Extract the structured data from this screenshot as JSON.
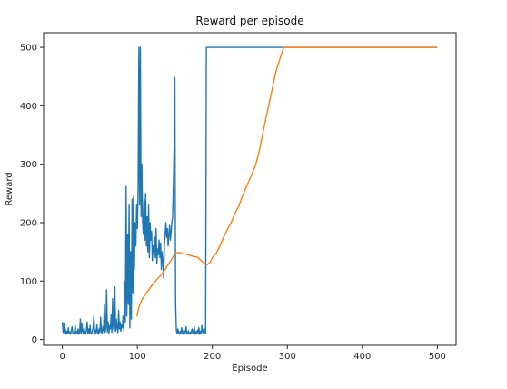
{
  "chart_data": {
    "type": "line",
    "title": "Reward per episode",
    "xlabel": "Episode",
    "ylabel": "Reward",
    "xlim": [
      -25,
      525
    ],
    "ylim": [
      -10,
      525
    ],
    "x_ticks": [
      0,
      100,
      200,
      300,
      400,
      500
    ],
    "y_ticks": [
      0,
      100,
      200,
      300,
      400,
      500
    ],
    "grid": false,
    "legend": "none",
    "series": [
      {
        "color": "#1f77b4",
        "points": [
          [
            0,
            30
          ],
          [
            1,
            12
          ],
          [
            2,
            28
          ],
          [
            3,
            10
          ],
          [
            4,
            18
          ],
          [
            5,
            9
          ],
          [
            6,
            14
          ],
          [
            7,
            11
          ],
          [
            8,
            20
          ],
          [
            9,
            10
          ],
          [
            10,
            13
          ],
          [
            11,
            9
          ],
          [
            12,
            16
          ],
          [
            13,
            22
          ],
          [
            14,
            10
          ],
          [
            15,
            12
          ],
          [
            16,
            9
          ],
          [
            17,
            25
          ],
          [
            18,
            11
          ],
          [
            19,
            14
          ],
          [
            20,
            10
          ],
          [
            21,
            18
          ],
          [
            22,
            9
          ],
          [
            23,
            12
          ],
          [
            24,
            35
          ],
          [
            25,
            10
          ],
          [
            26,
            28
          ],
          [
            27,
            14
          ],
          [
            28,
            10
          ],
          [
            29,
            20
          ],
          [
            30,
            12
          ],
          [
            31,
            9
          ],
          [
            32,
            15
          ],
          [
            33,
            30
          ],
          [
            34,
            11
          ],
          [
            35,
            18
          ],
          [
            36,
            10
          ],
          [
            37,
            24
          ],
          [
            38,
            12
          ],
          [
            39,
            9
          ],
          [
            40,
            14
          ],
          [
            41,
            20
          ],
          [
            42,
            40
          ],
          [
            43,
            11
          ],
          [
            44,
            16
          ],
          [
            45,
            10
          ],
          [
            46,
            26
          ],
          [
            47,
            13
          ],
          [
            48,
            9
          ],
          [
            49,
            18
          ],
          [
            50,
            12
          ],
          [
            51,
            38
          ],
          [
            52,
            14
          ],
          [
            53,
            10
          ],
          [
            54,
            22
          ],
          [
            55,
            15
          ],
          [
            56,
            60
          ],
          [
            57,
            12
          ],
          [
            58,
            20
          ],
          [
            59,
            85
          ],
          [
            60,
            13
          ],
          [
            61,
            30
          ],
          [
            62,
            10
          ],
          [
            63,
            24
          ],
          [
            64,
            18
          ],
          [
            65,
            42
          ],
          [
            66,
            12
          ],
          [
            67,
            70
          ],
          [
            68,
            20
          ],
          [
            69,
            15
          ],
          [
            70,
            90
          ],
          [
            71,
            14
          ],
          [
            72,
            35
          ],
          [
            73,
            20
          ],
          [
            74,
            12
          ],
          [
            75,
            50
          ],
          [
            76,
            18
          ],
          [
            77,
            30
          ],
          [
            78,
            14
          ],
          [
            79,
            25
          ],
          [
            80,
            20
          ],
          [
            81,
            40
          ],
          [
            82,
            15
          ],
          [
            83,
            100
          ],
          [
            84,
            30
          ],
          [
            85,
            262
          ],
          [
            86,
            40
          ],
          [
            87,
            180
          ],
          [
            88,
            60
          ],
          [
            89,
            230
          ],
          [
            90,
            20
          ],
          [
            91,
            150
          ],
          [
            92,
            35
          ],
          [
            93,
            240
          ],
          [
            94,
            80
          ],
          [
            95,
            245
          ],
          [
            96,
            120
          ],
          [
            97,
            200
          ],
          [
            98,
            160
          ],
          [
            99,
            230
          ],
          [
            100,
            190
          ],
          [
            101,
            255
          ],
          [
            102,
            500
          ],
          [
            103,
            230
          ],
          [
            104,
            500
          ],
          [
            105,
            210
          ],
          [
            106,
            300
          ],
          [
            107,
            200
          ],
          [
            108,
            180
          ],
          [
            109,
            240
          ],
          [
            110,
            170
          ],
          [
            111,
            250
          ],
          [
            112,
            160
          ],
          [
            113,
            210
          ],
          [
            114,
            150
          ],
          [
            115,
            230
          ],
          [
            116,
            140
          ],
          [
            117,
            200
          ],
          [
            118,
            170
          ],
          [
            119,
            185
          ],
          [
            120,
            135
          ],
          [
            121,
            160
          ],
          [
            122,
            150
          ],
          [
            123,
            175
          ],
          [
            124,
            140
          ],
          [
            125,
            190
          ],
          [
            126,
            130
          ],
          [
            127,
            155
          ],
          [
            128,
            145
          ],
          [
            129,
            170
          ],
          [
            130,
            140
          ],
          [
            131,
            165
          ],
          [
            132,
            120
          ],
          [
            133,
            150
          ],
          [
            134,
            135
          ],
          [
            135,
            105
          ],
          [
            136,
            160
          ],
          [
            137,
            180
          ],
          [
            138,
            200
          ],
          [
            139,
            175
          ],
          [
            140,
            190
          ],
          [
            141,
            160
          ],
          [
            142,
            180
          ],
          [
            143,
            195
          ],
          [
            144,
            170
          ],
          [
            145,
            185
          ],
          [
            146,
            200
          ],
          [
            147,
            210
          ],
          [
            148,
            260
          ],
          [
            149,
            330
          ],
          [
            150,
            448
          ],
          [
            151,
            60
          ],
          [
            152,
            15
          ],
          [
            153,
            10
          ],
          [
            154,
            18
          ],
          [
            155,
            12
          ],
          [
            156,
            9
          ],
          [
            157,
            14
          ],
          [
            158,
            10
          ],
          [
            159,
            20
          ],
          [
            160,
            12
          ],
          [
            161,
            9
          ],
          [
            162,
            16
          ],
          [
            163,
            10
          ],
          [
            164,
            13
          ],
          [
            165,
            22
          ],
          [
            166,
            9
          ],
          [
            167,
            11
          ],
          [
            168,
            15
          ],
          [
            169,
            10
          ],
          [
            170,
            12
          ],
          [
            171,
            9
          ],
          [
            172,
            14
          ],
          [
            173,
            18
          ],
          [
            174,
            10
          ],
          [
            175,
            12
          ],
          [
            176,
            22
          ],
          [
            177,
            9
          ],
          [
            178,
            13
          ],
          [
            179,
            10
          ],
          [
            180,
            16
          ],
          [
            181,
            11
          ],
          [
            182,
            20
          ],
          [
            183,
            9
          ],
          [
            184,
            14
          ],
          [
            185,
            10
          ],
          [
            186,
            24
          ],
          [
            187,
            12
          ],
          [
            188,
            16
          ],
          [
            189,
            11
          ],
          [
            190,
            18
          ],
          [
            191,
            10
          ],
          [
            192,
            500
          ],
          [
            500,
            500
          ]
        ]
      },
      {
        "color": "#ff7f0e",
        "points": [
          [
            99,
            40
          ],
          [
            100,
            42
          ],
          [
            101,
            50
          ],
          [
            102,
            55
          ],
          [
            104,
            62
          ],
          [
            106,
            68
          ],
          [
            108,
            72
          ],
          [
            110,
            76
          ],
          [
            112,
            80
          ],
          [
            115,
            85
          ],
          [
            118,
            90
          ],
          [
            121,
            95
          ],
          [
            124,
            100
          ],
          [
            127,
            104
          ],
          [
            130,
            108
          ],
          [
            133,
            113
          ],
          [
            136,
            118
          ],
          [
            139,
            124
          ],
          [
            142,
            130
          ],
          [
            145,
            136
          ],
          [
            148,
            142
          ],
          [
            150,
            148
          ],
          [
            155,
            149
          ],
          [
            160,
            147
          ],
          [
            165,
            146
          ],
          [
            170,
            144
          ],
          [
            175,
            142
          ],
          [
            180,
            141
          ],
          [
            185,
            135
          ],
          [
            190,
            130
          ],
          [
            193,
            128
          ],
          [
            197,
            132
          ],
          [
            200,
            140
          ],
          [
            205,
            147
          ],
          [
            210,
            160
          ],
          [
            215,
            175
          ],
          [
            220,
            188
          ],
          [
            225,
            200
          ],
          [
            230,
            215
          ],
          [
            235,
            228
          ],
          [
            240,
            245
          ],
          [
            245,
            260
          ],
          [
            250,
            275
          ],
          [
            255,
            290
          ],
          [
            258,
            300
          ],
          [
            262,
            320
          ],
          [
            266,
            345
          ],
          [
            270,
            370
          ],
          [
            275,
            400
          ],
          [
            280,
            430
          ],
          [
            285,
            460
          ],
          [
            290,
            480
          ],
          [
            295,
            500
          ],
          [
            300,
            500
          ],
          [
            350,
            500
          ],
          [
            400,
            500
          ],
          [
            450,
            500
          ],
          [
            500,
            500
          ]
        ]
      }
    ]
  }
}
